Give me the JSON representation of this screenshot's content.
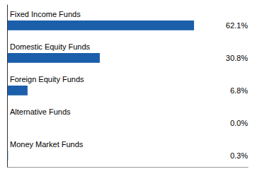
{
  "chart_data": {
    "type": "bar",
    "orientation": "horizontal",
    "categories": [
      "Fixed Income Funds",
      "Domestic Equity Funds",
      "Foreign Equity Funds",
      "Alternative Funds",
      "Money Market Funds"
    ],
    "values": [
      62.1,
      30.8,
      6.8,
      0.0,
      0.3
    ],
    "value_labels": [
      "62.1%",
      "30.8%",
      "6.8%",
      "0.0%",
      "0.3%"
    ],
    "color": "#1B5FAB",
    "xlim": [
      0,
      80
    ],
    "data_labels": true,
    "tick_labels": false,
    "grid": false
  }
}
